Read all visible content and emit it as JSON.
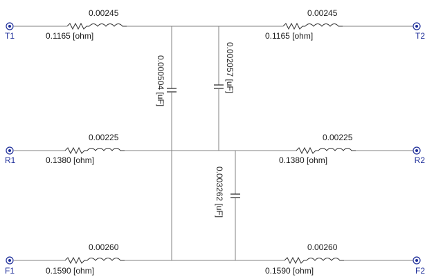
{
  "terminals": {
    "t1": "T1",
    "t2": "T2",
    "r1": "R1",
    "r2": "R2",
    "f1": "F1",
    "f2": "F2"
  },
  "lines": {
    "t_left": {
      "inductance": "0.00245",
      "resistance": "0.1165 [ohm]"
    },
    "t_right": {
      "inductance": "0.00245",
      "resistance": "0.1165 [ohm]"
    },
    "r_left": {
      "inductance": "0.00225",
      "resistance": "0.1380 [ohm]"
    },
    "r_right": {
      "inductance": "0.00225",
      "resistance": "0.1380 [ohm]"
    },
    "f_left": {
      "inductance": "0.00260",
      "resistance": "0.1590 [ohm]"
    },
    "f_right": {
      "inductance": "0.00260",
      "resistance": "0.1590 [ohm]"
    }
  },
  "capacitors": {
    "c1": "0.000504 [uF]",
    "c2": "0.002057 [uF]",
    "c3": "0.003262 [uF]"
  },
  "colors": {
    "terminal": "#1f2f9a",
    "wire": "#808080",
    "component": "#303030"
  }
}
